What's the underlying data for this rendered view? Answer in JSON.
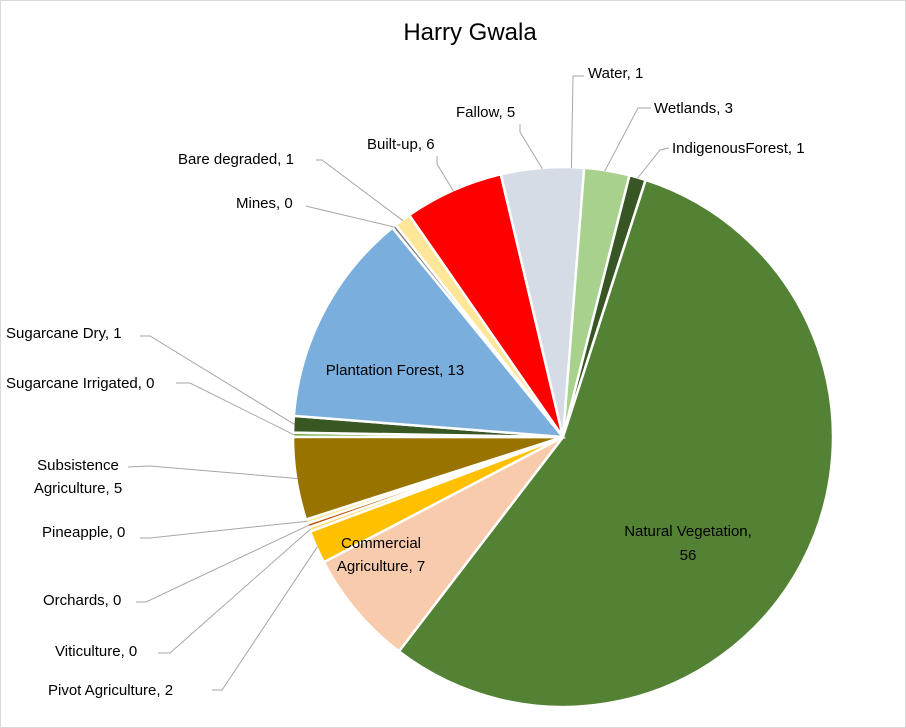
{
  "chart_data": {
    "type": "pie",
    "title": "Harry Gwala",
    "slices": [
      {
        "name": "Water",
        "value": 1,
        "color": "#1f4e79"
      },
      {
        "name": "Wetlands",
        "value": 3,
        "color": "#a9d18e"
      },
      {
        "name": "IndigenousForest",
        "value": 1,
        "color": "#375623"
      },
      {
        "name": "Natural Vegetation",
        "value": 56,
        "color": "#548235"
      },
      {
        "name": "Commercial Agriculture",
        "value": 7,
        "color": "#f8cbad"
      },
      {
        "name": "Pivot  Agriculture",
        "value": 2,
        "color": "#ffc000"
      },
      {
        "name": "Viticulture",
        "value": 0,
        "color": "#ffd966"
      },
      {
        "name": "Orchards",
        "value": 0,
        "color": "#c55a11"
      },
      {
        "name": "Pineapple",
        "value": 0,
        "color": "#ffe699"
      },
      {
        "name": "Subsistence Agriculture",
        "value": 5,
        "color": "#997300"
      },
      {
        "name": "Sugarcane Irrigated",
        "value": 0,
        "color": "#70ad47"
      },
      {
        "name": "Sugarcane Dry",
        "value": 1,
        "color": "#385723"
      },
      {
        "name": "Plantation Forest",
        "value": 13,
        "color": "#7aaedd"
      },
      {
        "name": "Mines",
        "value": 0,
        "color": "#808080"
      },
      {
        "name": "Bare degraded",
        "value": 1,
        "color": "#ffe699"
      },
      {
        "name": "Built-up",
        "value": 6,
        "color": "#ff0000"
      },
      {
        "name": "Fallow",
        "value": 5,
        "color": "#d6dce5"
      }
    ],
    "labels": [
      "Water, 1",
      "Wetlands, 3",
      "IndigenousForest, 1",
      "Natural Vegetation,",
      "56",
      "Commercial",
      "Agriculture, 7",
      "Pivot  Agriculture, 2",
      "Viticulture, 0",
      "Orchards, 0",
      "Pineapple, 0",
      "Subsistence",
      "Agriculture, 5",
      "Sugarcane Irrigated, 0",
      "Sugarcane Dry, 1",
      "Plantation Forest, 13",
      "Mines, 0",
      "Bare degraded, 1",
      "Built-up, 6",
      "Fallow, 5"
    ]
  }
}
